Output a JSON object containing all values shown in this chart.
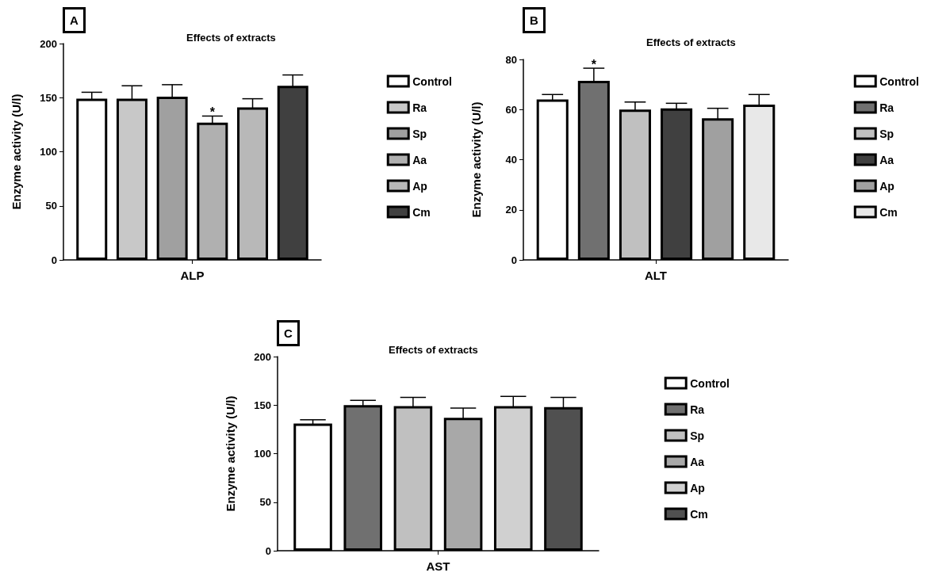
{
  "chart_data": [
    {
      "type": "bar",
      "title": "Effects of extracts",
      "ylabel": "Enzyme activity (U/l)",
      "categories": [
        "ALP"
      ],
      "ylim": [
        0,
        200
      ],
      "yticks": [
        0,
        50,
        100,
        150,
        200
      ],
      "grid": false,
      "legend": "right",
      "annotations": [
        "A",
        "*"
      ],
      "series": [
        {
          "name": "Control",
          "color": "#ffffff",
          "values": [
            149
          ],
          "errors": [
            6
          ]
        },
        {
          "name": "Ra",
          "color": "#c8c8c8",
          "values": [
            149
          ],
          "errors": [
            12
          ]
        },
        {
          "name": "Sp",
          "color": "#a0a0a0",
          "values": [
            151
          ],
          "errors": [
            11
          ]
        },
        {
          "name": "Aa",
          "color": "#b0b0b0",
          "values": [
            127
          ],
          "errors": [
            6
          ]
        },
        {
          "name": "Ap",
          "color": "#b8b8b8",
          "values": [
            141
          ],
          "errors": [
            8
          ]
        },
        {
          "name": "Cm",
          "color": "#404040",
          "values": [
            161
          ],
          "errors": [
            10
          ]
        }
      ]
    },
    {
      "type": "bar",
      "title": "Effects of extracts",
      "ylabel": "Enzyme activity (U/l)",
      "categories": [
        "ALT"
      ],
      "ylim": [
        0,
        80
      ],
      "yticks": [
        0,
        20,
        40,
        60,
        80
      ],
      "grid": false,
      "legend": "right",
      "annotations": [
        "B",
        "*"
      ],
      "series": [
        {
          "name": "Control",
          "color": "#ffffff",
          "values": [
            64
          ],
          "errors": [
            2
          ]
        },
        {
          "name": "Ra",
          "color": "#707070",
          "values": [
            71.5
          ],
          "errors": [
            5
          ]
        },
        {
          "name": "Sp",
          "color": "#c0c0c0",
          "values": [
            60
          ],
          "errors": [
            3
          ]
        },
        {
          "name": "Aa",
          "color": "#404040",
          "values": [
            60.5
          ],
          "errors": [
            2
          ]
        },
        {
          "name": "Ap",
          "color": "#a0a0a0",
          "values": [
            56.5
          ],
          "errors": [
            4
          ]
        },
        {
          "name": "Cm",
          "color": "#e8e8e8",
          "values": [
            62
          ],
          "errors": [
            4
          ]
        }
      ]
    },
    {
      "type": "bar",
      "title": "Effects of extracts",
      "ylabel": "Enzyme activity (U/l)",
      "categories": [
        "AST"
      ],
      "ylim": [
        0,
        200
      ],
      "yticks": [
        0,
        50,
        100,
        150,
        200
      ],
      "grid": false,
      "legend": "right",
      "annotations": [
        "C"
      ],
      "series": [
        {
          "name": "Control",
          "color": "#ffffff",
          "values": [
            131
          ],
          "errors": [
            4
          ]
        },
        {
          "name": "Ra",
          "color": "#707070",
          "values": [
            150
          ],
          "errors": [
            5
          ]
        },
        {
          "name": "Sp",
          "color": "#c0c0c0",
          "values": [
            149
          ],
          "errors": [
            9
          ]
        },
        {
          "name": "Aa",
          "color": "#a8a8a8",
          "values": [
            137
          ],
          "errors": [
            10
          ]
        },
        {
          "name": "Ap",
          "color": "#d0d0d0",
          "values": [
            149
          ],
          "errors": [
            10
          ]
        },
        {
          "name": "Cm",
          "color": "#505050",
          "values": [
            148
          ],
          "errors": [
            10
          ]
        }
      ]
    }
  ]
}
